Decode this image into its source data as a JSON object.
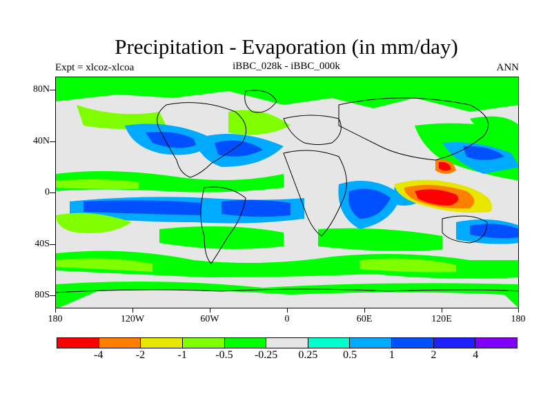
{
  "title": "Precipitation - Evaporation (in mm/day)",
  "subtitle_left": "Expt = xlcoz-xlcoa",
  "subtitle_center": "iBBC_028k - iBBC_000k",
  "subtitle_right": "ANN",
  "lat_labels": [
    "80N",
    "40N",
    "0",
    "40S",
    "80S"
  ],
  "lon_labels": [
    "180",
    "120W",
    "60W",
    "0",
    "60E",
    "120E",
    "180"
  ],
  "colorbar": {
    "colors": [
      "#ff0000",
      "#ff8000",
      "#e6e600",
      "#80ff00",
      "#00ff00",
      "#e6e6e6",
      "#00ffcc",
      "#00aaff",
      "#0050ff",
      "#2020ff",
      "#8000ff"
    ],
    "labels": [
      "-4",
      "-2",
      "-1",
      "-0.5",
      "-0.25",
      "0.25",
      "0.5",
      "1",
      "2",
      "4"
    ]
  }
}
